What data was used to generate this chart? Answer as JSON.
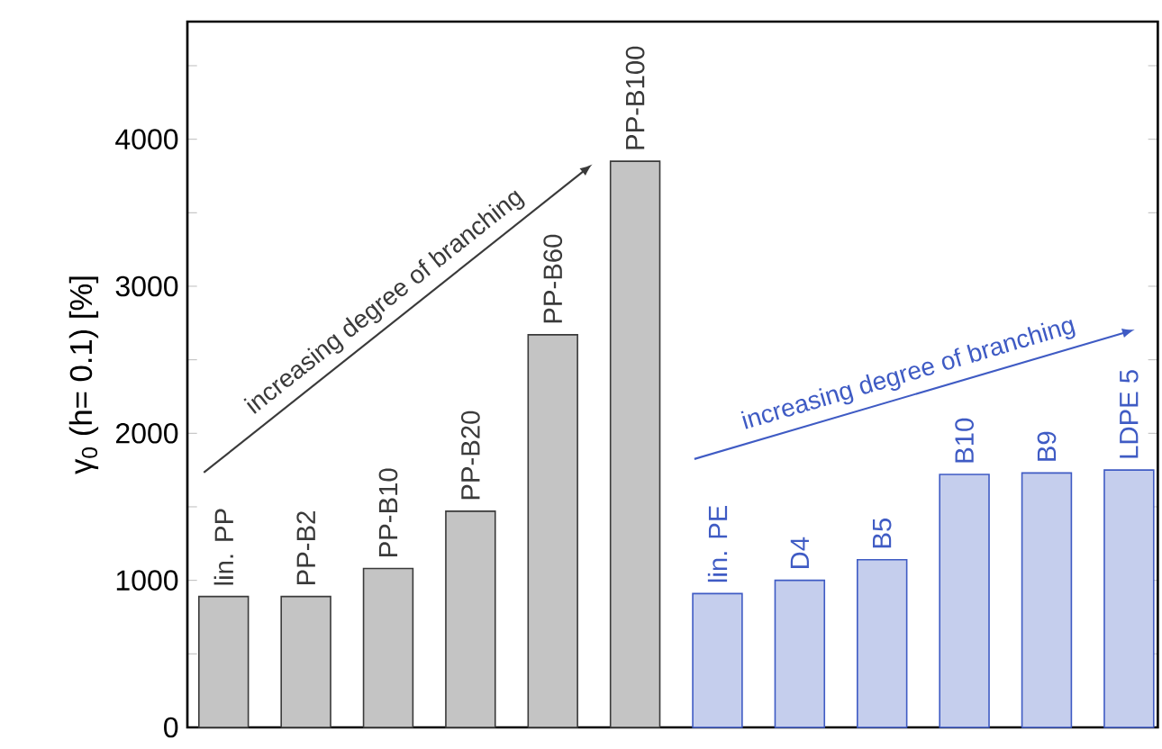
{
  "chart_data": {
    "type": "bar",
    "ylabel": "γ$_{0}$ (h= 0.1) [%]",
    "categories": [
      "lin. PP",
      "PP-B2",
      "PP-B10",
      "PP-B20",
      "PP-B60",
      "PP-B100",
      "lin. PE",
      "D4",
      "B5",
      "B10",
      "B9",
      "LDPE 5"
    ],
    "values": [
      890,
      890,
      1080,
      1470,
      2670,
      3850,
      910,
      1000,
      1140,
      1720,
      1730,
      1750
    ],
    "colors": [
      "#3a3a3a",
      "#3a3a3a",
      "#3a3a3a",
      "#3a3a3a",
      "#3a3a3a",
      "#3a3a3a",
      "#3f5bc4",
      "#3f5bc4",
      "#3f5bc4",
      "#3f5bc4",
      "#3f5bc4",
      "#3f5bc4"
    ],
    "ylim": [
      0,
      4800
    ],
    "yticks": [
      0,
      {
        "value": 500,
        "label": null
      },
      1000,
      {
        "value": 1500,
        "label": null
      },
      2000,
      {
        "value": 2500,
        "label": null
      },
      3000,
      {
        "value": 3500,
        "label": null
      },
      4000,
      {
        "value": 4500,
        "label": null
      }
    ],
    "annotations": [
      "increasing degree of branching",
      "increasing degree of branching"
    ]
  }
}
